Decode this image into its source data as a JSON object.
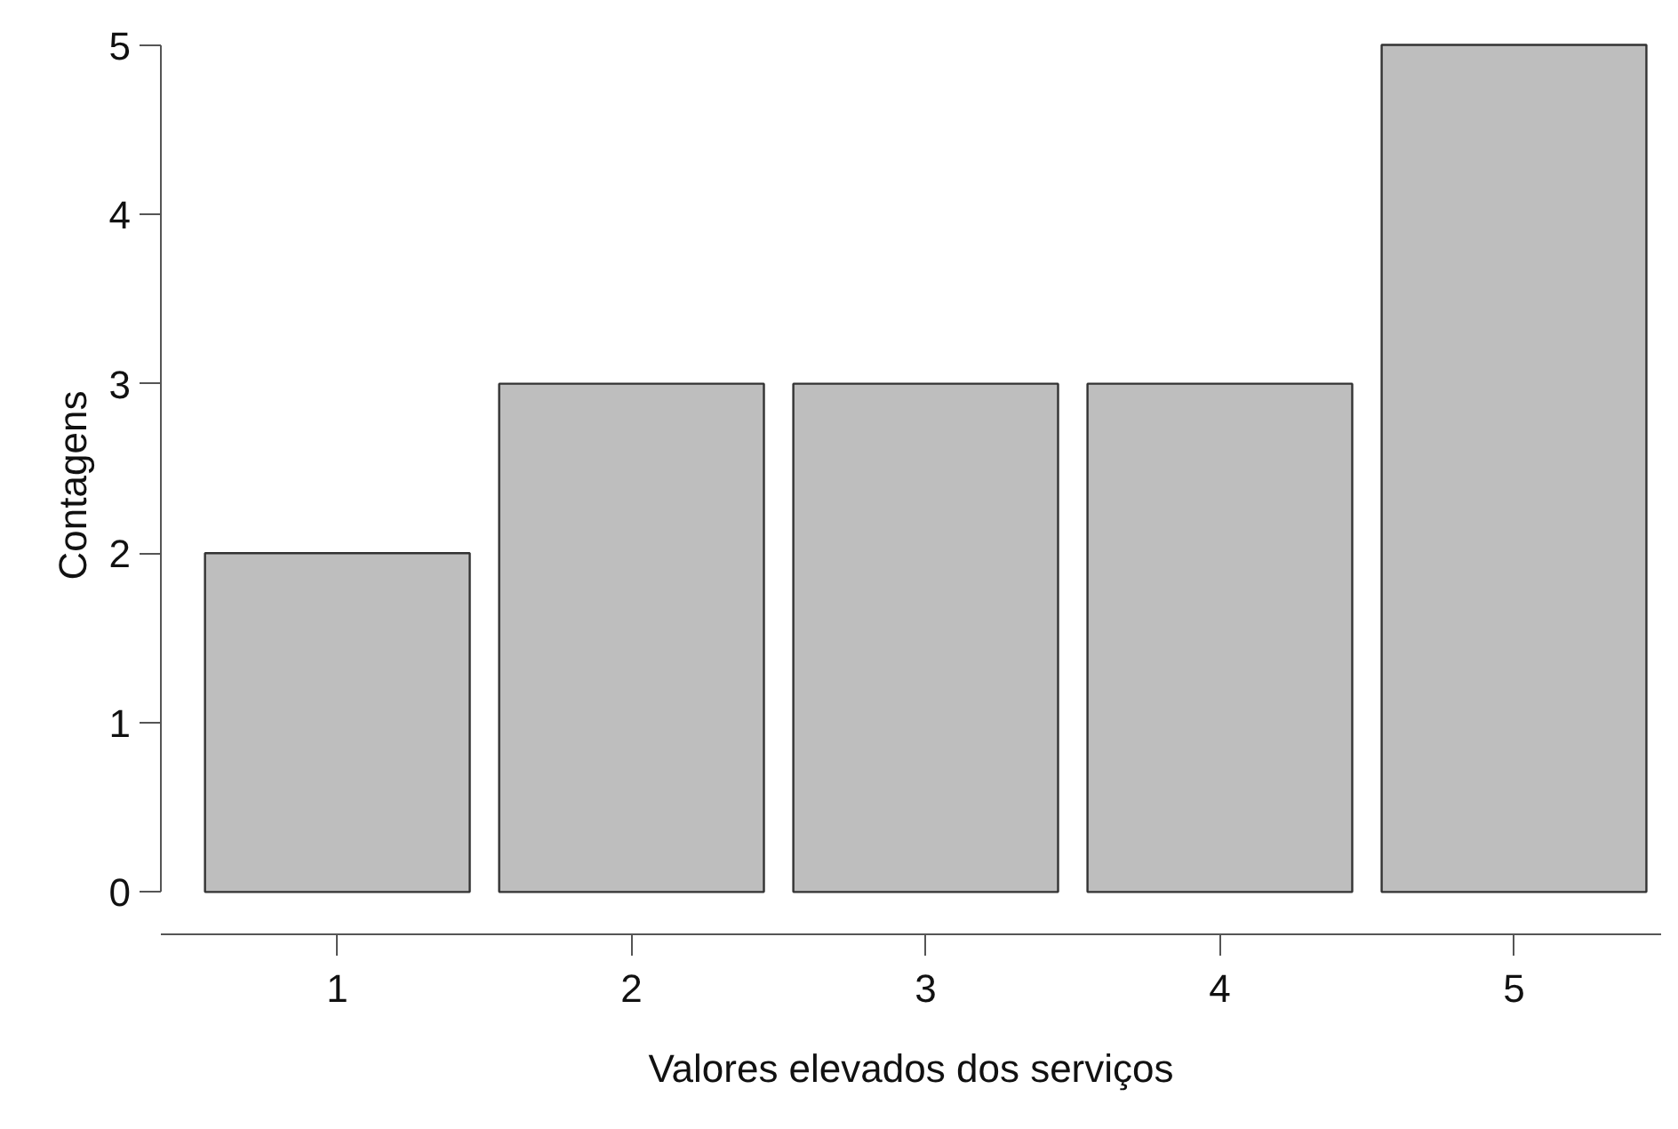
{
  "chart_data": {
    "type": "bar",
    "xlabel": "Valores elevados dos serviços",
    "ylabel": "Contagens",
    "x": [
      1,
      2,
      3,
      4,
      5
    ],
    "values": [
      2,
      3,
      3,
      3,
      5
    ],
    "color": "#bebebe",
    "xlim": [
      0.4,
      5.5
    ],
    "xticks": [
      1,
      2,
      3,
      4,
      5
    ],
    "ylim": [
      0,
      5
    ],
    "yticks": [
      0,
      1,
      2,
      3,
      4,
      5
    ],
    "grid": false
  }
}
